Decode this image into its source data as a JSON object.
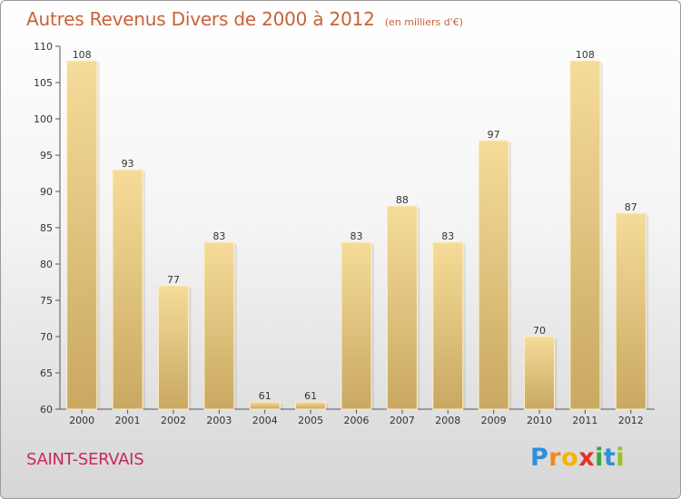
{
  "chart_data": {
    "type": "bar",
    "title": "Autres Revenus Divers de 2000 à 2012",
    "subtitle": "(en milliers d'€)",
    "categories": [
      "2000",
      "2001",
      "2002",
      "2003",
      "2004",
      "2005",
      "2006",
      "2007",
      "2008",
      "2009",
      "2010",
      "2011",
      "2012"
    ],
    "values": [
      108,
      93,
      77,
      83,
      61,
      61,
      83,
      88,
      83,
      97,
      70,
      108,
      87
    ],
    "ylim": [
      60,
      110
    ],
    "yticks": [
      60,
      65,
      70,
      75,
      80,
      85,
      90,
      95,
      100,
      105,
      110
    ],
    "xlabel": "",
    "ylabel": "",
    "grid": false,
    "colors": {
      "bar_light": "#f5dc98",
      "bar_dark": "#c9a862",
      "bar_edge": "#fdf0c8",
      "title": "#c8623a"
    }
  },
  "commune": "SAINT-SERVAIS",
  "logo": {
    "letters": [
      "P",
      "r",
      "o",
      "x",
      "i",
      "t",
      "i"
    ],
    "colors": [
      "#2f8fd8",
      "#f08a1c",
      "#f5b400",
      "#e8302a",
      "#3aa53a",
      "#2f8fd8",
      "#9ac21c"
    ]
  }
}
